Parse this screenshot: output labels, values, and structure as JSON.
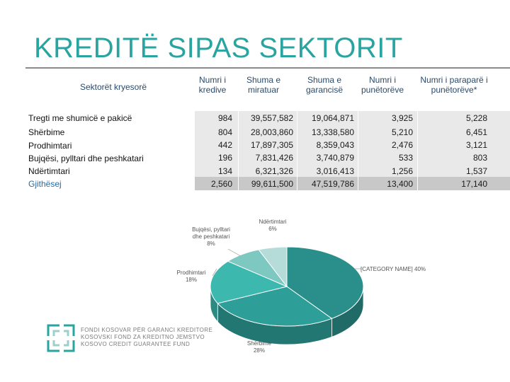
{
  "title": "KREDITË SIPAS SEKTORIT",
  "table": {
    "row_header": "Sektorët kryesorë",
    "columns": [
      {
        "line1": "Numri i",
        "line2": "kredive"
      },
      {
        "line1": "Shuma e",
        "line2": "miratuar"
      },
      {
        "line1": "Shuma e",
        "line2": "garancisë"
      },
      {
        "line1": "Numri i",
        "line2": "punëtorëve"
      },
      {
        "line1": "Numri i paraparë i",
        "line2": "punëtorëve*"
      }
    ],
    "rows": [
      {
        "label": "Tregti me shumicë e pakicë",
        "values": [
          "984",
          "39,557,582",
          "19,064,871",
          "3,925",
          "5,228"
        ]
      },
      {
        "label": "Shërbime",
        "values": [
          "804",
          "28,003,860",
          "13,338,580",
          "5,210",
          "6,451"
        ]
      },
      {
        "label": "Prodhimtari",
        "values": [
          "442",
          "17,897,305",
          "8,359,043",
          "2,476",
          "3,121"
        ]
      },
      {
        "label": "Bujqësi, pylltari dhe peshkatari",
        "values": [
          "196",
          "7,831,426",
          "3,740,879",
          "533",
          "803"
        ]
      },
      {
        "label": "Ndërtimtari",
        "values": [
          "134",
          "6,321,326",
          "3,016,413",
          "1,256",
          "1,537"
        ]
      }
    ],
    "total": {
      "label": "Gjithësej",
      "values": [
        "2,560",
        "99,611,500",
        "47,519,786",
        "13,400",
        "17,140"
      ]
    }
  },
  "chart_data": {
    "type": "pie",
    "slices": [
      {
        "label": "[CATEGORY NAME]",
        "percent_label": "40%",
        "value": 40,
        "color": "#2a8f8a"
      },
      {
        "label": "Shërbime",
        "percent_label": "28%",
        "value": 28,
        "color": "#2e9e98"
      },
      {
        "label": "Prodhimtari",
        "percent_label": "18%",
        "value": 18,
        "color": "#3cb8ae"
      },
      {
        "label": "Bujqësi, pylltari dhe peshkatari",
        "percent_label": "8%",
        "value": 8,
        "color": "#7ec8c2"
      },
      {
        "label": "Ndërtimtari",
        "percent_label": "6%",
        "value": 6,
        "color": "#b5dcd8"
      }
    ]
  },
  "logo": {
    "lines": [
      "FONDI KOSOVAR PËR GARANCI KREDITORE",
      "KOSOVSKI FOND ZA KREDITNO JEMSTVO",
      "KOSOVO CREDIT GUARANTEE FUND"
    ],
    "color": "#2aa4a0"
  }
}
